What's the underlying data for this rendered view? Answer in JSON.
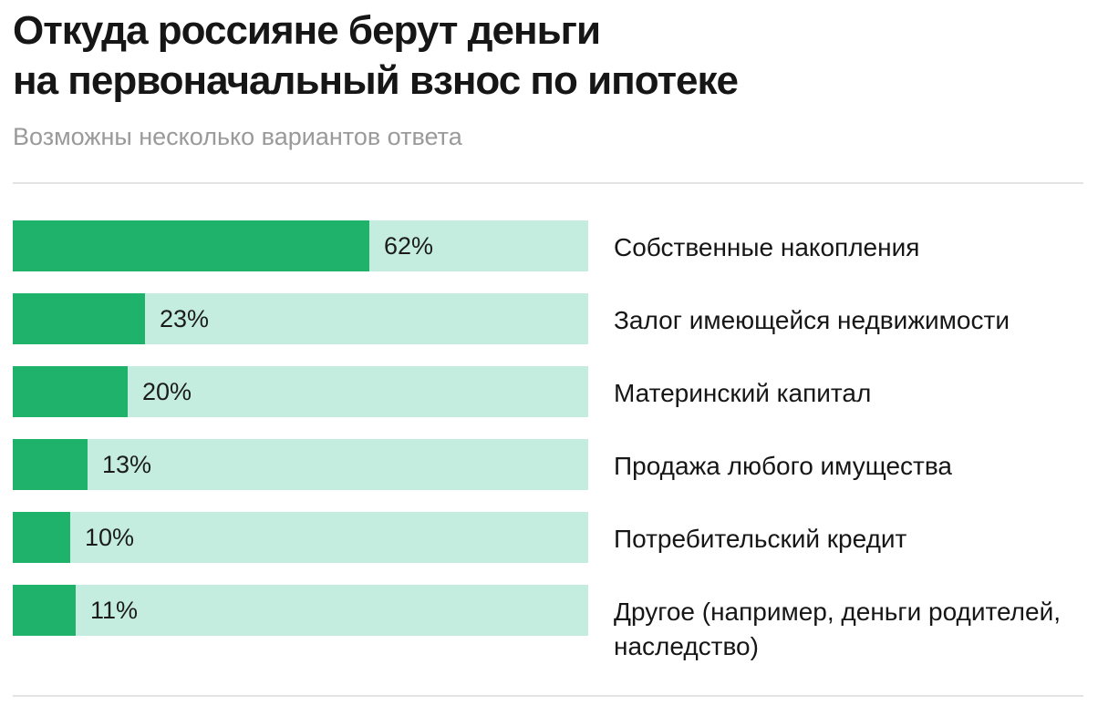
{
  "chart_data": {
    "type": "bar",
    "orientation": "horizontal",
    "title_lines": [
      "Откуда россияне берут деньги",
      "на первоначальный взнос по ипотеке"
    ],
    "subtitle": "Возможны несколько вариантов ответа",
    "categories": [
      "Собственные накопления",
      "Залог имеющейся недвижимости",
      "Материнский капитал",
      "Продажа любого имущества",
      "Потребительский кредит",
      "Другое (например, деньги родителей, наследство)"
    ],
    "values": [
      62,
      23,
      20,
      13,
      10,
      11
    ],
    "value_labels": [
      "62%",
      "23%",
      "20%",
      "13%",
      "10%",
      "11%"
    ],
    "unit": "%",
    "xlim": [
      0,
      100
    ],
    "legend": "none",
    "grid": false,
    "colors": {
      "bar": "#1fb26b",
      "track": "#c4ede0",
      "title": "#161616",
      "subtitle": "#9a9a9a",
      "divider": "#e3e3e3"
    }
  }
}
